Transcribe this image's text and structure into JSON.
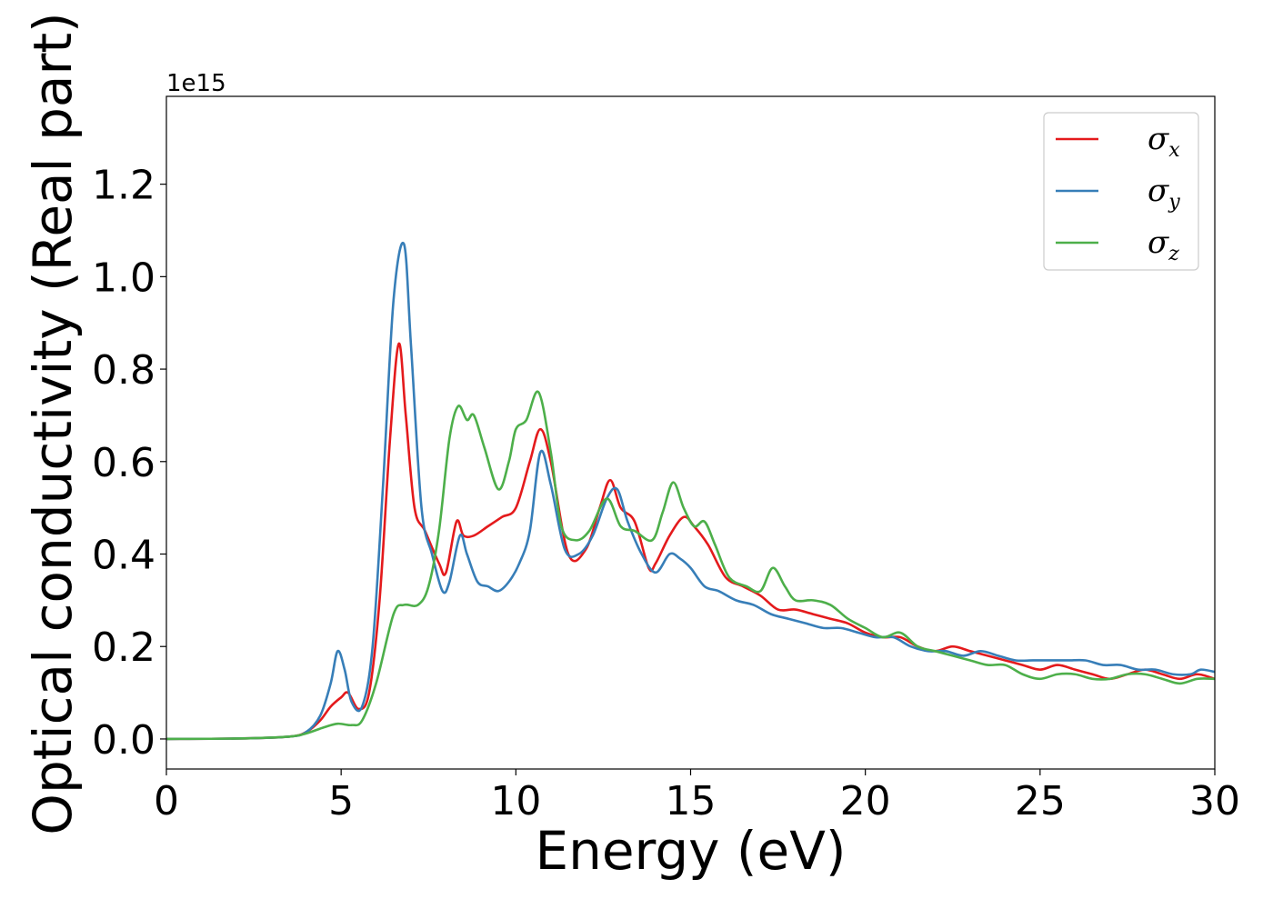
{
  "chart_data": {
    "type": "line",
    "title": "",
    "xlabel": "Energy (eV)",
    "ylabel": "Optical conductivity (Real part)",
    "y_offset_label": "1e15",
    "xlim": [
      0,
      30
    ],
    "ylim": [
      -0.065,
      1.39
    ],
    "xticks": [
      0,
      5,
      10,
      15,
      20,
      25,
      30
    ],
    "xtick_labels": [
      "0",
      "5",
      "10",
      "15",
      "20",
      "25",
      "30"
    ],
    "yticks": [
      0.0,
      0.2,
      0.4,
      0.6,
      0.8,
      1.0,
      1.2
    ],
    "ytick_labels": [
      "0.0",
      "0.2",
      "0.4",
      "0.6",
      "0.8",
      "1.0",
      "1.2"
    ],
    "grid": false,
    "legend_position": "top-right",
    "series": [
      {
        "name": "σx",
        "symbol": "σ",
        "subscript": "x",
        "color": "#e41a1c",
        "x": [
          0,
          2,
          3.5,
          4,
          4.4,
          4.7,
          5.0,
          5.2,
          5.5,
          5.8,
          6.1,
          6.4,
          6.65,
          6.85,
          7.1,
          7.4,
          7.8,
          8.0,
          8.3,
          8.5,
          8.8,
          9.2,
          9.6,
          10.0,
          10.4,
          10.7,
          11.0,
          11.5,
          12.0,
          12.4,
          12.7,
          13.0,
          13.4,
          13.8,
          14.0,
          14.4,
          14.8,
          15.1,
          15.5,
          16.0,
          16.5,
          17.0,
          17.5,
          18.0,
          18.5,
          19.0,
          19.5,
          20.0,
          20.5,
          21.0,
          21.5,
          22.0,
          22.5,
          23.0,
          23.5,
          24.0,
          24.5,
          25.0,
          25.5,
          26.0,
          26.5,
          27.0,
          27.5,
          28.0,
          28.5,
          29.0,
          29.5,
          30.0
        ],
        "y": [
          0,
          0.001,
          0.005,
          0.015,
          0.04,
          0.07,
          0.09,
          0.1,
          0.065,
          0.1,
          0.3,
          0.65,
          0.855,
          0.7,
          0.5,
          0.45,
          0.38,
          0.36,
          0.47,
          0.44,
          0.44,
          0.46,
          0.48,
          0.5,
          0.6,
          0.67,
          0.6,
          0.4,
          0.41,
          0.5,
          0.56,
          0.5,
          0.47,
          0.37,
          0.38,
          0.44,
          0.48,
          0.46,
          0.42,
          0.35,
          0.33,
          0.31,
          0.28,
          0.28,
          0.27,
          0.26,
          0.25,
          0.23,
          0.22,
          0.22,
          0.2,
          0.19,
          0.2,
          0.19,
          0.18,
          0.17,
          0.16,
          0.15,
          0.16,
          0.15,
          0.14,
          0.13,
          0.14,
          0.15,
          0.14,
          0.13,
          0.14,
          0.13
        ]
      },
      {
        "name": "σy",
        "symbol": "σ",
        "subscript": "y",
        "color": "#377eb8",
        "x": [
          0,
          2,
          3.5,
          4,
          4.4,
          4.7,
          4.9,
          5.1,
          5.3,
          5.6,
          5.9,
          6.2,
          6.5,
          6.8,
          7.0,
          7.3,
          7.6,
          7.9,
          8.1,
          8.4,
          8.6,
          8.9,
          9.2,
          9.5,
          9.8,
          10.1,
          10.4,
          10.7,
          11.0,
          11.4,
          11.8,
          12.2,
          12.6,
          12.9,
          13.2,
          13.6,
          14.0,
          14.4,
          14.7,
          15.0,
          15.4,
          15.8,
          16.3,
          16.8,
          17.3,
          17.8,
          18.3,
          18.8,
          19.3,
          19.8,
          20.3,
          20.8,
          21.3,
          21.8,
          22.3,
          22.8,
          23.3,
          23.8,
          24.3,
          24.8,
          25.3,
          25.8,
          26.3,
          26.8,
          27.3,
          27.8,
          28.3,
          28.8,
          29.3,
          29.6,
          30.0
        ],
        "y": [
          0,
          0.001,
          0.005,
          0.015,
          0.05,
          0.12,
          0.19,
          0.15,
          0.08,
          0.07,
          0.2,
          0.55,
          0.95,
          1.07,
          0.85,
          0.5,
          0.4,
          0.32,
          0.34,
          0.44,
          0.4,
          0.34,
          0.33,
          0.32,
          0.34,
          0.38,
          0.45,
          0.62,
          0.55,
          0.41,
          0.4,
          0.44,
          0.52,
          0.54,
          0.47,
          0.4,
          0.36,
          0.4,
          0.39,
          0.37,
          0.33,
          0.32,
          0.3,
          0.29,
          0.27,
          0.26,
          0.25,
          0.24,
          0.24,
          0.23,
          0.22,
          0.22,
          0.2,
          0.19,
          0.19,
          0.18,
          0.19,
          0.18,
          0.17,
          0.17,
          0.17,
          0.17,
          0.17,
          0.16,
          0.16,
          0.15,
          0.15,
          0.14,
          0.14,
          0.15,
          0.145
        ]
      },
      {
        "name": "σz",
        "symbol": "σ",
        "subscript": "z",
        "color": "#4daf4a",
        "x": [
          0,
          2,
          3.5,
          4,
          4.5,
          4.9,
          5.3,
          5.6,
          6.0,
          6.5,
          6.8,
          7.2,
          7.5,
          7.8,
          8.1,
          8.35,
          8.6,
          8.8,
          9.1,
          9.5,
          9.8,
          10.0,
          10.3,
          10.65,
          11.0,
          11.3,
          11.7,
          12.1,
          12.6,
          13.0,
          13.4,
          13.9,
          14.2,
          14.5,
          14.8,
          15.1,
          15.4,
          15.7,
          16.1,
          16.6,
          17.0,
          17.35,
          17.7,
          18.0,
          18.5,
          19.0,
          19.5,
          20.0,
          20.5,
          21.0,
          21.5,
          22.0,
          22.5,
          23.0,
          23.5,
          24.0,
          24.5,
          25.0,
          25.5,
          26.0,
          26.5,
          27.0,
          27.5,
          28.0,
          28.5,
          29.0,
          29.5,
          30.0
        ],
        "y": [
          0,
          0.001,
          0.005,
          0.012,
          0.025,
          0.033,
          0.03,
          0.04,
          0.12,
          0.27,
          0.29,
          0.29,
          0.33,
          0.45,
          0.65,
          0.72,
          0.69,
          0.7,
          0.63,
          0.54,
          0.6,
          0.67,
          0.69,
          0.75,
          0.62,
          0.46,
          0.43,
          0.45,
          0.52,
          0.46,
          0.45,
          0.43,
          0.49,
          0.555,
          0.5,
          0.46,
          0.47,
          0.42,
          0.35,
          0.33,
          0.32,
          0.37,
          0.33,
          0.3,
          0.3,
          0.29,
          0.26,
          0.24,
          0.22,
          0.23,
          0.2,
          0.19,
          0.18,
          0.17,
          0.16,
          0.16,
          0.14,
          0.13,
          0.14,
          0.14,
          0.13,
          0.13,
          0.14,
          0.14,
          0.13,
          0.12,
          0.13,
          0.13
        ]
      }
    ]
  }
}
